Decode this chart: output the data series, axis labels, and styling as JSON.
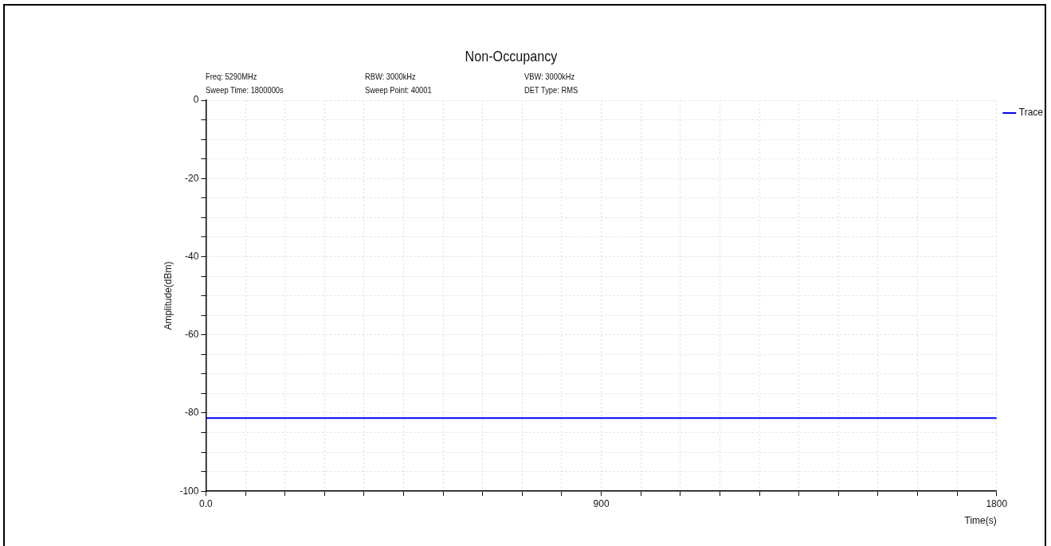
{
  "chart_data": {
    "type": "line",
    "title": "Non-Occupancy",
    "annotations": [
      "Freq: 5290MHz",
      "Sweep Time: 1800000s",
      "RBW: 3000kHz",
      "Sweep Point: 40001",
      "VBW: 3000kHz",
      "DET Type: RMS"
    ],
    "xlabel": "Time(s)",
    "ylabel": "Amplitude(dBm)",
    "series": [
      {
        "name": "Trace",
        "color": "#0000ff",
        "x": [
          0,
          1800
        ],
        "values": [
          -81.3,
          -81.3
        ]
      }
    ],
    "xlim": [
      0,
      1800
    ],
    "xticks": [
      {
        "value": 0,
        "label": "0.0"
      },
      {
        "value": 90,
        "label": null
      },
      {
        "value": 180,
        "label": null
      },
      {
        "value": 270,
        "label": null
      },
      {
        "value": 360,
        "label": null
      },
      {
        "value": 450,
        "label": null
      },
      {
        "value": 540,
        "label": null
      },
      {
        "value": 630,
        "label": null
      },
      {
        "value": 720,
        "label": null
      },
      {
        "value": 810,
        "label": null
      },
      900,
      {
        "value": 990,
        "label": null
      },
      {
        "value": 1080,
        "label": null
      },
      {
        "value": 1170,
        "label": null
      },
      {
        "value": 1260,
        "label": null
      },
      {
        "value": 1350,
        "label": null
      },
      {
        "value": 1440,
        "label": null
      },
      {
        "value": 1530,
        "label": null
      },
      {
        "value": 1620,
        "label": null
      },
      {
        "value": 1710,
        "label": null
      },
      1800
    ],
    "ylim": [
      -100,
      0
    ],
    "yticks": [
      -100,
      {
        "value": -95,
        "label": null
      },
      {
        "value": -90,
        "label": null
      },
      {
        "value": -85,
        "label": null
      },
      -80,
      {
        "value": -75,
        "label": null
      },
      {
        "value": -70,
        "label": null
      },
      {
        "value": -65,
        "label": null
      },
      -60,
      {
        "value": -55,
        "label": null
      },
      {
        "value": -50,
        "label": null
      },
      {
        "value": -45,
        "label": null
      },
      -40,
      {
        "value": -35,
        "label": null
      },
      {
        "value": -30,
        "label": null
      },
      {
        "value": -25,
        "label": null
      },
      -20,
      {
        "value": -15,
        "label": null
      },
      {
        "value": -10,
        "label": null
      },
      {
        "value": -5,
        "label": null
      },
      0
    ],
    "grid": true,
    "legend": "top right",
    "marker": "none",
    "line_style": "solid"
  }
}
